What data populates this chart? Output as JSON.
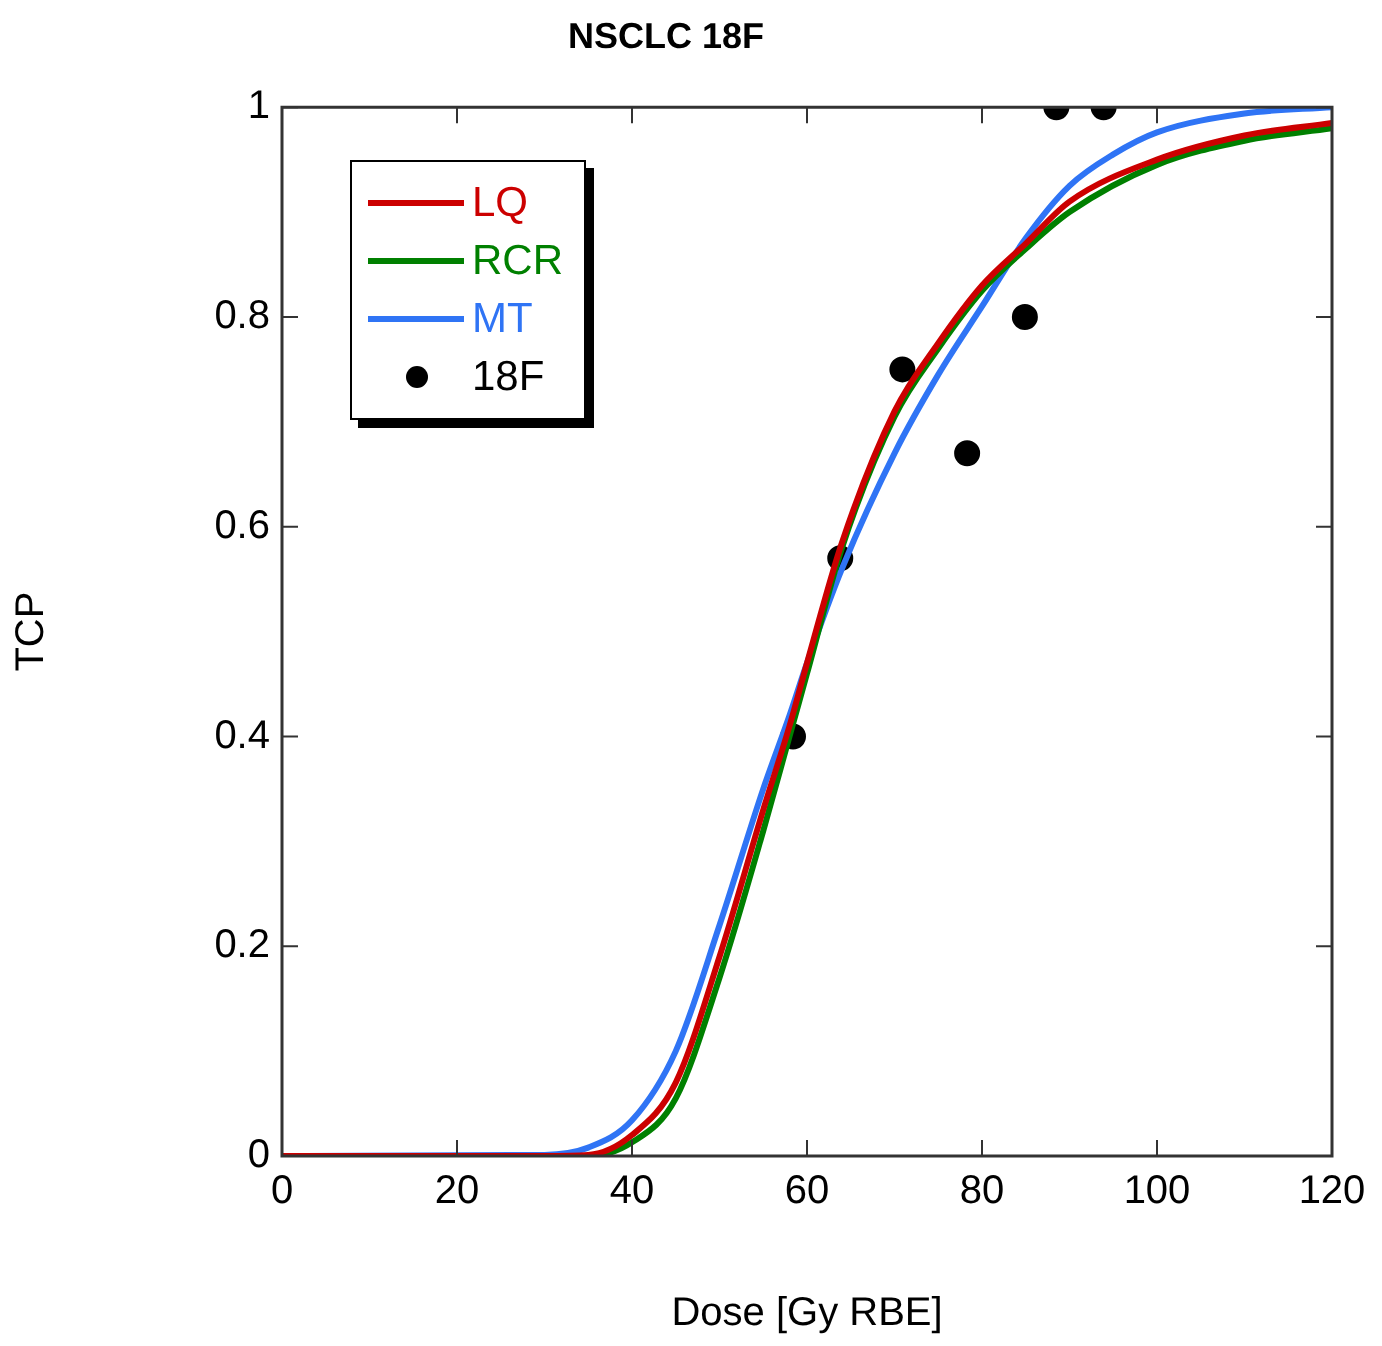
{
  "chart_data": {
    "type": "line",
    "title": "NSCLC 18F",
    "xlabel": "Dose [Gy RBE]",
    "ylabel": "TCP",
    "xlim": [
      0,
      120
    ],
    "ylim": [
      0,
      1
    ],
    "xticks": [
      0,
      20,
      40,
      60,
      80,
      100,
      120
    ],
    "yticks": [
      0,
      0.2,
      0.4,
      0.6,
      0.8,
      1
    ],
    "legend": "top left",
    "series": [
      {
        "name": "LQ",
        "color": "#cc0000",
        "type": "line",
        "marker": "none",
        "x": [
          0,
          30,
          35,
          40,
          45,
          50,
          55,
          58,
          60,
          64,
          70,
          75,
          80,
          85,
          90,
          100,
          110,
          120
        ],
        "values": [
          0,
          0,
          0.001,
          0.02,
          0.07,
          0.19,
          0.33,
          0.41,
          0.47,
          0.585,
          0.71,
          0.775,
          0.83,
          0.87,
          0.91,
          0.95,
          0.973,
          0.985
        ]
      },
      {
        "name": "RCR",
        "color": "#008000",
        "type": "line",
        "marker": "none",
        "x": [
          0,
          30,
          35,
          40,
          45,
          50,
          55,
          58,
          60,
          64,
          70,
          75,
          80,
          85,
          90,
          100,
          110,
          120
        ],
        "values": [
          0,
          0,
          0,
          0.013,
          0.055,
          0.17,
          0.31,
          0.4,
          0.46,
          0.58,
          0.705,
          0.77,
          0.825,
          0.865,
          0.9,
          0.945,
          0.968,
          0.98
        ]
      },
      {
        "name": "MT",
        "color": "#2f74f5",
        "type": "line",
        "marker": "none",
        "x": [
          0,
          30,
          35,
          40,
          45,
          50,
          55,
          58,
          60,
          64,
          70,
          75,
          80,
          85,
          90,
          95,
          100,
          110,
          120
        ],
        "values": [
          0,
          0.001,
          0.008,
          0.034,
          0.1,
          0.22,
          0.35,
          0.42,
          0.47,
          0.56,
          0.67,
          0.745,
          0.81,
          0.875,
          0.925,
          0.955,
          0.976,
          0.994,
          1
        ]
      },
      {
        "name": "18F",
        "color": "#000000",
        "type": "scatter",
        "marker": "circle",
        "x": [
          58.4,
          63.8,
          70.9,
          78.3,
          84.9,
          88.5,
          93.9
        ],
        "values": [
          0.4,
          0.57,
          0.75,
          0.67,
          0.8,
          1,
          1
        ]
      }
    ]
  }
}
